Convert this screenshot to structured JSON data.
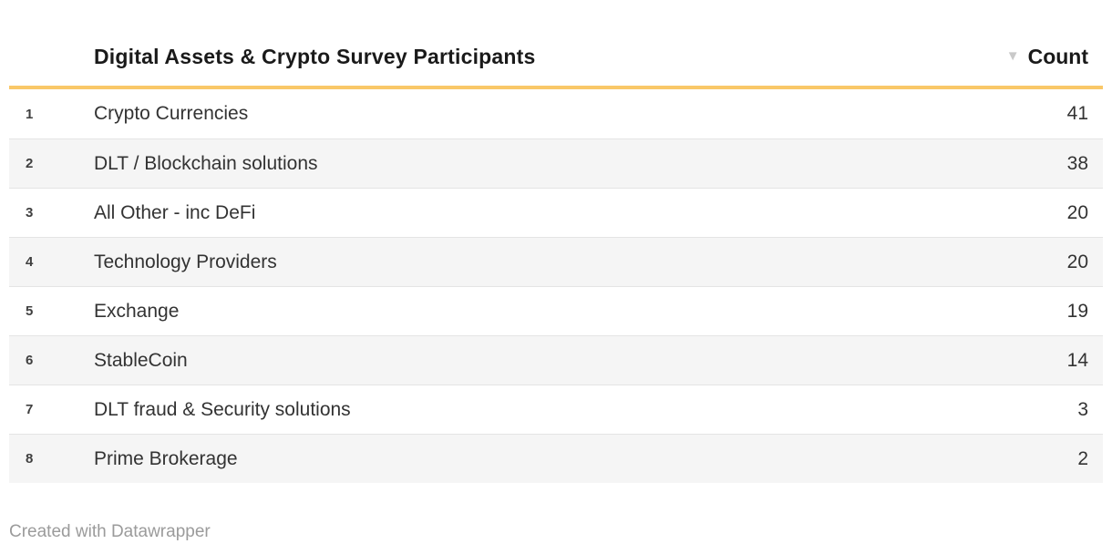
{
  "table": {
    "title": "Digital Assets & Crypto Survey Participants",
    "count_label": "Count",
    "sort_icon": "▼",
    "sort_state": "descending",
    "rows": [
      {
        "rank": "1",
        "label": "Crypto Currencies",
        "count": "41"
      },
      {
        "rank": "2",
        "label": "DLT / Blockchain solutions",
        "count": "38"
      },
      {
        "rank": "3",
        "label": "All Other - inc DeFi",
        "count": "20"
      },
      {
        "rank": "4",
        "label": "Technology Providers",
        "count": "20"
      },
      {
        "rank": "5",
        "label": "Exchange",
        "count": "19"
      },
      {
        "rank": "6",
        "label": "StableCoin",
        "count": "14"
      },
      {
        "rank": "7",
        "label": "DLT fraud & Security solutions",
        "count": "3"
      },
      {
        "rank": "8",
        "label": "Prime Brokerage",
        "count": "2"
      }
    ]
  },
  "footer": {
    "attribution": "Created with Datawrapper"
  },
  "colors": {
    "accent_rule": "#f9c868",
    "stripe": "#f5f5f5",
    "row_border": "#e4e4e4",
    "title_text": "#1a1a1a",
    "body_text": "#333333",
    "rank_text": "#3f3f3f",
    "sort_icon": "#c9c9c9",
    "footer_text": "#9b9b9b",
    "background": "#ffffff"
  },
  "chart_data": {
    "type": "table",
    "title": "Digital Assets & Crypto Survey Participants",
    "columns": [
      "#",
      "Digital Assets & Crypto Survey Participants",
      "Count"
    ],
    "categories": [
      "Crypto Currencies",
      "DLT / Blockchain solutions",
      "All Other - inc DeFi",
      "Technology Providers",
      "Exchange",
      "StableCoin",
      "DLT fraud & Security solutions",
      "Prime Brokerage"
    ],
    "values": [
      41,
      38,
      20,
      20,
      19,
      14,
      3,
      2
    ],
    "sort": "Count descending",
    "row_striping": true,
    "attribution": "Created with Datawrapper"
  }
}
